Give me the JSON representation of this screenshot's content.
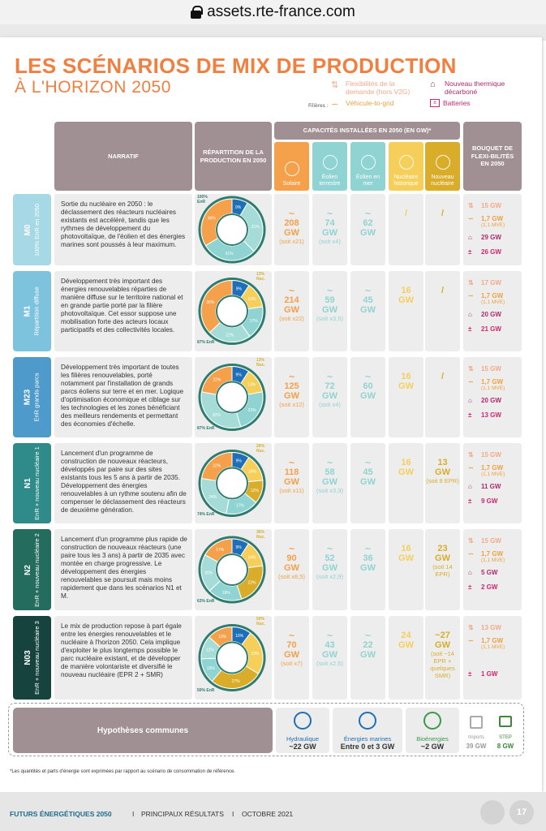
{
  "browser": {
    "url": "assets.rte-france.com"
  },
  "title": {
    "line1": "LES SCÉNARIOS DE MIX DE PRODUCTION",
    "line2": "À L'HORIZON 2050"
  },
  "legend": {
    "filieres_label": "Filières :",
    "items": [
      {
        "label": "Flexibilités de la demande (hors V2G)",
        "color": "#f5a88a",
        "icon": "demand-flex-icon"
      },
      {
        "label": "Nouveau thermique décarboné",
        "color": "#b12a6b",
        "icon": "thermal-icon"
      },
      {
        "label": "Véhicule-to-grid",
        "color": "#f0a040",
        "icon": "v2g-icon"
      },
      {
        "label": "Batteries",
        "color": "#d2266f",
        "icon": "battery-icon"
      }
    ]
  },
  "headers": {
    "narratif": "NARRATIF",
    "repartition": "RÉPARTITION DE LA PRODUCTION EN 2050",
    "capacites": "CAPACITÉS INSTALLÉES EN 2050 (EN GW)*",
    "bouquet": "BOUQUET DE FLEXI-BILITÉS EN 2050",
    "columns": [
      {
        "label": "Solaire",
        "color": "#f5a04a"
      },
      {
        "label": "Éolien terrestre",
        "color": "#8fd3d2"
      },
      {
        "label": "Éolien en mer",
        "color": "#8fd3d2"
      },
      {
        "label": "Nucléaire historique",
        "color": "#f5cf5a"
      },
      {
        "label": "Nouveau nucléaire",
        "color": "#d9ad2a"
      }
    ]
  },
  "scenarios": [
    {
      "code": "M0",
      "sub": "100% EnR en 2050",
      "color": "#a7d8e6",
      "narrative": "Sortie du nucléaire en 2050 : le déclassement des réacteurs nucléaires existants est accéléré, tandis que les rythmes de développement du photovoltaïque, de l'éolien et des énergies marines sont poussés à leur maximum.",
      "donut": {
        "top_label": "100% EnR",
        "bottom_label": "",
        "segments": [
          {
            "name": "Hydro",
            "pct": 9,
            "color": "#1e6fb8"
          },
          {
            "name": "Éolien terrestre",
            "pct": 31,
            "color": "#a5dcd8"
          },
          {
            "name": "Éolien en mer",
            "pct": 31,
            "color": "#8fd3d2"
          },
          {
            "name": "Solaire",
            "pct": 36,
            "color": "#f5a04a"
          }
        ],
        "labels": [
          "9%",
          "31%",
          "31%",
          "36%"
        ]
      },
      "values": [
        {
          "main": "208",
          "unit": "GW",
          "note": "(soit x21)",
          "color": "#f5a04a",
          "tilde": "~"
        },
        {
          "main": "74",
          "unit": "GW",
          "note": "(soit x4)",
          "color": "#8fd3d2",
          "tilde": "~"
        },
        {
          "main": "62",
          "unit": "GW",
          "note": "",
          "color": "#8fd3d2",
          "tilde": "~"
        },
        {
          "main": "/",
          "unit": "",
          "note": "",
          "color": "#f5cf5a",
          "tilde": ""
        },
        {
          "main": "/",
          "unit": "",
          "note": "",
          "color": "#d9ad2a",
          "tilde": ""
        }
      ],
      "flex": [
        {
          "value": "15 GW",
          "sub": "",
          "color": "#f5a88a"
        },
        {
          "value": "1,7 GW",
          "sub": "(1,1 MVE)",
          "color": "#f0a040"
        },
        {
          "value": "29 GW",
          "sub": "",
          "color": "#b12a6b"
        },
        {
          "value": "26 GW",
          "sub": "",
          "color": "#d2266f"
        }
      ]
    },
    {
      "code": "M1",
      "sub": "Répartition diffuse",
      "color": "#7ec3dd",
      "narrative": "Développement très important des énergies renouvelables réparties de manière diffuse sur le territoire national et en grande partie porté par la filière photovoltaïque. Cet essor suppose une mobilisation forte des acteurs locaux participatifs et des collectivités locales.",
      "donut": {
        "top_label": "13% Nuc.",
        "bottom_label": "87% EnR",
        "segments": [
          {
            "name": "Hydro",
            "pct": 9,
            "color": "#1e6fb8"
          },
          {
            "name": "Nucléaire",
            "pct": 13,
            "color": "#f5cf5a"
          },
          {
            "name": "Éolien en mer",
            "pct": 17,
            "color": "#8fd3d2"
          },
          {
            "name": "Éolien terrestre",
            "pct": 22,
            "color": "#a5dcd8"
          },
          {
            "name": "Solaire",
            "pct": 36,
            "color": "#f5a04a"
          }
        ],
        "labels": [
          "9%",
          "13%",
          "17%",
          "22%",
          "36%"
        ]
      },
      "values": [
        {
          "main": "214",
          "unit": "GW",
          "note": "(soit x22)",
          "color": "#f5a04a",
          "tilde": "~"
        },
        {
          "main": "59",
          "unit": "GW",
          "note": "(soit x3,5)",
          "color": "#8fd3d2",
          "tilde": "~"
        },
        {
          "main": "45",
          "unit": "GW",
          "note": "",
          "color": "#8fd3d2",
          "tilde": "~"
        },
        {
          "main": "16",
          "unit": "GW",
          "note": "",
          "color": "#f5cf5a",
          "tilde": ""
        },
        {
          "main": "/",
          "unit": "",
          "note": "",
          "color": "#d9ad2a",
          "tilde": ""
        }
      ],
      "flex": [
        {
          "value": "17 GW",
          "sub": "",
          "color": "#f5a88a"
        },
        {
          "value": "1,7 GW",
          "sub": "(1,1 MVE)",
          "color": "#f0a040"
        },
        {
          "value": "20 GW",
          "sub": "",
          "color": "#b12a6b"
        },
        {
          "value": "21 GW",
          "sub": "",
          "color": "#d2266f"
        }
      ]
    },
    {
      "code": "M23",
      "sub": "EnR grands parcs",
      "color": "#4e9acb",
      "narrative": "Développement très important de toutes les filières renouvelables, porté notamment par l'installation de grands parcs éoliens sur terre et en mer. Logique d'optimisation économique et ciblage sur les technologies et les zones bénéficiant des meilleurs rendements et permettant des économies d'échelle.",
      "donut": {
        "top_label": "13% Nuc.",
        "bottom_label": "87% EnR",
        "segments": [
          {
            "name": "Hydro",
            "pct": 9,
            "color": "#1e6fb8"
          },
          {
            "name": "Nucléaire",
            "pct": 13,
            "color": "#f5cf5a"
          },
          {
            "name": "Éolien en mer",
            "pct": 23,
            "color": "#8fd3d2"
          },
          {
            "name": "Éolien terrestre",
            "pct": 32,
            "color": "#a5dcd8"
          },
          {
            "name": "Solaire",
            "pct": 22,
            "color": "#f5a04a"
          }
        ],
        "labels": [
          "9%",
          "13%",
          "23%",
          "32%",
          "22%"
        ]
      },
      "values": [
        {
          "main": "125",
          "unit": "GW",
          "note": "(soit x12)",
          "color": "#f5a04a",
          "tilde": "~"
        },
        {
          "main": "72",
          "unit": "GW",
          "note": "(soit x4)",
          "color": "#8fd3d2",
          "tilde": "~"
        },
        {
          "main": "60",
          "unit": "GW",
          "note": "",
          "color": "#8fd3d2",
          "tilde": "~"
        },
        {
          "main": "16",
          "unit": "GW",
          "note": "",
          "color": "#f5cf5a",
          "tilde": ""
        },
        {
          "main": "/",
          "unit": "",
          "note": "",
          "color": "#d9ad2a",
          "tilde": ""
        }
      ],
      "flex": [
        {
          "value": "15 GW",
          "sub": "",
          "color": "#f5a88a"
        },
        {
          "value": "1,7 GW",
          "sub": "(1,1 MVE)",
          "color": "#f0a040"
        },
        {
          "value": "20 GW",
          "sub": "",
          "color": "#b12a6b"
        },
        {
          "value": "13 GW",
          "sub": "",
          "color": "#d2266f"
        }
      ]
    },
    {
      "code": "N1",
      "sub": "EnR + nouveau nucléaire 1",
      "color": "#2f8a8a",
      "narrative": "Lancement d'un programme de construction de nouveaux réacteurs, développés par paire sur des sites existants tous les 5 ans à partir de 2035. Développement des énergies renouvelables à un rythme soutenu afin de compenser le déclassement des réacteurs de deuxième génération.",
      "donut": {
        "top_label": "26% Nuc.",
        "bottom_label": "74% EnR",
        "segments": [
          {
            "name": "Hydro",
            "pct": 9,
            "color": "#1e6fb8"
          },
          {
            "name": "Nucléaire historique",
            "pct": 14,
            "color": "#f5cf5a"
          },
          {
            "name": "Nouveau nucléaire",
            "pct": 12,
            "color": "#d9ad2a"
          },
          {
            "name": "Éolien en mer",
            "pct": 17,
            "color": "#8fd3d2"
          },
          {
            "name": "Éolien terrestre",
            "pct": 24,
            "color": "#a5dcd8"
          },
          {
            "name": "Solaire",
            "pct": 22,
            "color": "#f5a04a"
          }
        ],
        "labels": [
          "9%",
          "14%",
          "12%",
          "17%",
          "24%",
          "22%"
        ]
      },
      "values": [
        {
          "main": "118",
          "unit": "GW",
          "note": "(soit x11)",
          "color": "#f5a04a",
          "tilde": "~"
        },
        {
          "main": "58",
          "unit": "GW",
          "note": "(soit x3,3)",
          "color": "#8fd3d2",
          "tilde": "~"
        },
        {
          "main": "45",
          "unit": "GW",
          "note": "",
          "color": "#8fd3d2",
          "tilde": "~"
        },
        {
          "main": "16",
          "unit": "GW",
          "note": "",
          "color": "#f5cf5a",
          "tilde": ""
        },
        {
          "main": "13",
          "unit": "GW",
          "note": "(soit 8 EPR)",
          "color": "#d9ad2a",
          "tilde": ""
        }
      ],
      "flex": [
        {
          "value": "15 GW",
          "sub": "",
          "color": "#f5a88a"
        },
        {
          "value": "1,7 GW",
          "sub": "(1,1 MVE)",
          "color": "#f0a040"
        },
        {
          "value": "11 GW",
          "sub": "",
          "color": "#b12a6b"
        },
        {
          "value": "9 GW",
          "sub": "",
          "color": "#d2266f"
        }
      ]
    },
    {
      "code": "N2",
      "sub": "EnR + nouveau nucléaire 2",
      "color": "#236c5e",
      "narrative": "Lancement d'un programme plus rapide de construction de nouveaux réacteurs (une paire tous les 3 ans) à partir de 2035 avec montée en charge progressive. Le développement des énergies renouvelables se poursuit mais moins rapidement que dans les scénarios N1 et M.",
      "donut": {
        "top_label": "36% Nuc.",
        "bottom_label": "63% EnR",
        "segments": [
          {
            "name": "Hydro",
            "pct": 9,
            "color": "#1e6fb8"
          },
          {
            "name": "Nucléaire historique",
            "pct": 14,
            "color": "#f5cf5a"
          },
          {
            "name": "Nouveau nucléaire",
            "pct": 22,
            "color": "#d9ad2a"
          },
          {
            "name": "Éolien en mer",
            "pct": 18,
            "color": "#8fd3d2"
          },
          {
            "name": "Éolien terrestre",
            "pct": 20,
            "color": "#a5dcd8"
          },
          {
            "name": "Solaire",
            "pct": 17,
            "color": "#f5a04a"
          }
        ],
        "labels": [
          "9%",
          "14%",
          "22%",
          "18%",
          "20%",
          "17%"
        ]
      },
      "values": [
        {
          "main": "90",
          "unit": "GW",
          "note": "(soit x8,5)",
          "color": "#f5a04a",
          "tilde": "~"
        },
        {
          "main": "52",
          "unit": "GW",
          "note": "(soit x2,9)",
          "color": "#8fd3d2",
          "tilde": "~"
        },
        {
          "main": "36",
          "unit": "GW",
          "note": "",
          "color": "#8fd3d2",
          "tilde": "~"
        },
        {
          "main": "16",
          "unit": "GW",
          "note": "",
          "color": "#f5cf5a",
          "tilde": ""
        },
        {
          "main": "23",
          "unit": "GW",
          "note": "(soit 14 EPR)",
          "color": "#d9ad2a",
          "tilde": ""
        }
      ],
      "flex": [
        {
          "value": "15 GW",
          "sub": "",
          "color": "#f5a88a"
        },
        {
          "value": "1,7 GW",
          "sub": "(1,1 MVE)",
          "color": "#f0a040"
        },
        {
          "value": "5 GW",
          "sub": "",
          "color": "#b12a6b"
        },
        {
          "value": "2 GW",
          "sub": "",
          "color": "#d2266f"
        }
      ]
    },
    {
      "code": "N03",
      "sub": "EnR + nouveau nucléaire 3",
      "color": "#17433f",
      "narrative": "Le mix de production repose à part égale entre les énergies renouvelables et le nucléaire à l'horizon 2050. Cela implique d'exploiter le plus longtemps possible le parc nucléaire existant, et de développer de manière volontariste et diversifié le nouveau nucléaire (EPR 2 + SMR)",
      "donut": {
        "top_label": "50% Nuc.",
        "bottom_label": "50% EnR",
        "segments": [
          {
            "name": "Hydro",
            "pct": 10,
            "color": "#1e6fb8"
          },
          {
            "name": "Nucléaire historique",
            "pct": 23,
            "color": "#f5cf5a"
          },
          {
            "name": "Nouveau nucléaire",
            "pct": 27,
            "color": "#d9ad2a"
          },
          {
            "name": "Éolien en mer",
            "pct": 13,
            "color": "#8fd3d2"
          },
          {
            "name": "Éolien terrestre",
            "pct": 12,
            "color": "#a5dcd8"
          },
          {
            "name": "Solaire",
            "pct": 13,
            "color": "#f5a04a"
          }
        ],
        "labels": [
          "10%",
          "23%",
          "27%",
          "13%",
          "12%",
          "13%"
        ]
      },
      "values": [
        {
          "main": "70",
          "unit": "GW",
          "note": "(soit x7)",
          "color": "#f5a04a",
          "tilde": "~"
        },
        {
          "main": "43",
          "unit": "GW",
          "note": "(soit x2,5)",
          "color": "#8fd3d2",
          "tilde": "~"
        },
        {
          "main": "22",
          "unit": "GW",
          "note": "",
          "color": "#8fd3d2",
          "tilde": "~"
        },
        {
          "main": "24",
          "unit": "GW",
          "note": "",
          "color": "#f5cf5a",
          "tilde": ""
        },
        {
          "main": "~27",
          "unit": "GW",
          "note": "(soit ~14 EPR + quelques SMR)",
          "color": "#d9ad2a",
          "tilde": ""
        }
      ],
      "flex": [
        {
          "value": "13 GW",
          "sub": "",
          "color": "#f5a88a"
        },
        {
          "value": "1,7 GW",
          "sub": "(1,1 MVE)",
          "color": "#f0a040"
        },
        {
          "value": "",
          "sub": "",
          "color": "#b12a6b"
        },
        {
          "value": "1 GW",
          "sub": "",
          "color": "#d2266f"
        }
      ]
    }
  ],
  "common": {
    "label": "Hypothèses communes",
    "items": [
      {
        "name": "Hydraulique",
        "value": "~22 GW",
        "color": "#1e6fb8",
        "icon": "hydro-icon"
      },
      {
        "name": "Énergies marines",
        "value": "Entre 0 et 3 GW",
        "color": "#1e6fb8",
        "icon": "marine-icon"
      },
      {
        "name": "Bioénergies",
        "value": "~2 GW",
        "color": "#3a9a4a",
        "icon": "bio-icon"
      },
      {
        "name": "Imports",
        "value": "39 GW",
        "color": "#999999",
        "icon": "imports-icon"
      },
      {
        "name": "STEP",
        "value": "8 GW",
        "color": "#3a8a3a",
        "icon": "step-icon"
      }
    ]
  },
  "footnote": "*Les quantités et parts d'énergie sont exprimées par rapport au scénario de consommation de référence.",
  "footer": {
    "brand": "FUTURS ÉNERGÉTIQUES 2050",
    "section": "PRINCIPAUX RÉSULTATS",
    "date": "OCTOBRE 2021",
    "page": "17"
  }
}
